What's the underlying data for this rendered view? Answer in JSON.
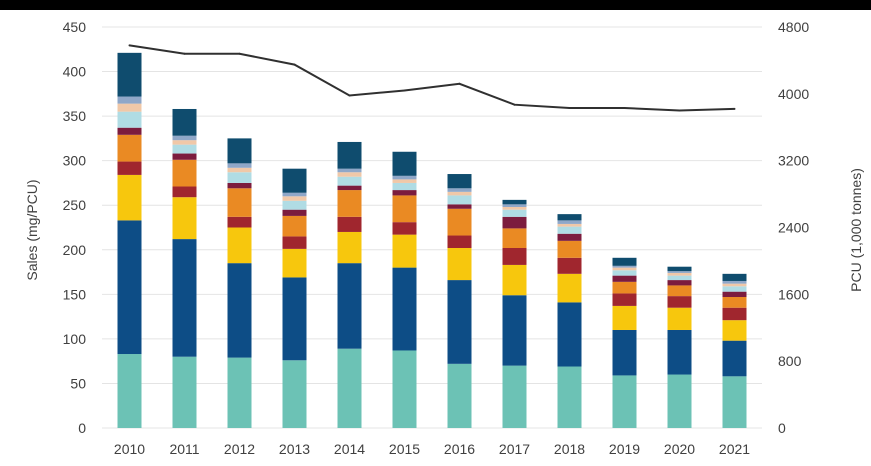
{
  "chart_data": {
    "type": "bar",
    "stacked": true,
    "secondary_series": "line",
    "categories": [
      "2010",
      "2011",
      "2012",
      "2013",
      "2014",
      "2015",
      "2016",
      "2017",
      "2018",
      "2019",
      "2020",
      "2021"
    ],
    "ylabel": "Sales (mg/PCU)",
    "y2label": "PCU (1,000 tonnes)",
    "ylim": [
      0,
      450
    ],
    "y2lim": [
      0,
      4800
    ],
    "yticks": [
      "0",
      "50",
      "100",
      "150",
      "200",
      "250",
      "300",
      "350",
      "400",
      "450"
    ],
    "y2ticks": [
      "0",
      "800",
      "1600",
      "2400",
      "3200",
      "4000",
      "4800"
    ],
    "grid": true,
    "colors": [
      "#6cc2b5",
      "#0d4d86",
      "#f7c70d",
      "#a0262e",
      "#ea8a23",
      "#7c1c3e",
      "#b0dce4",
      "#f0c8a8",
      "#8fa7c8",
      "#0f4c6e"
    ],
    "line_color": "#303030",
    "series": [
      {
        "values": [
          83,
          80,
          79,
          76,
          89,
          87,
          72,
          70,
          69,
          59,
          60,
          58
        ]
      },
      {
        "values": [
          150,
          132,
          106,
          93,
          96,
          93,
          94,
          79,
          72,
          51,
          50,
          40
        ]
      },
      {
        "values": [
          51,
          47,
          40,
          32,
          35,
          37,
          36,
          34,
          32,
          27,
          25,
          23
        ]
      },
      {
        "values": [
          15,
          12,
          12,
          14,
          17,
          14,
          14,
          19,
          18,
          14,
          13,
          14
        ]
      },
      {
        "values": [
          30,
          30,
          32,
          23,
          30,
          30,
          30,
          22,
          19,
          13,
          12,
          12
        ]
      },
      {
        "values": [
          8,
          7,
          6,
          7,
          5,
          6,
          5,
          13,
          8,
          7,
          6,
          6
        ]
      },
      {
        "values": [
          18,
          10,
          12,
          10,
          10,
          8,
          10,
          8,
          8,
          6,
          5,
          6
        ]
      },
      {
        "values": [
          9,
          5,
          5,
          5,
          5,
          4,
          4,
          3,
          3,
          3,
          3,
          3
        ]
      },
      {
        "values": [
          8,
          5,
          5,
          4,
          4,
          4,
          4,
          3,
          4,
          2,
          2,
          3
        ]
      },
      {
        "values": [
          49,
          30,
          28,
          27,
          30,
          27,
          16,
          5,
          7,
          9,
          5,
          8
        ]
      }
    ],
    "line": {
      "values": [
        4580,
        4480,
        4480,
        4350,
        3980,
        4040,
        4120,
        3870,
        3830,
        3830,
        3800,
        3820
      ]
    }
  }
}
